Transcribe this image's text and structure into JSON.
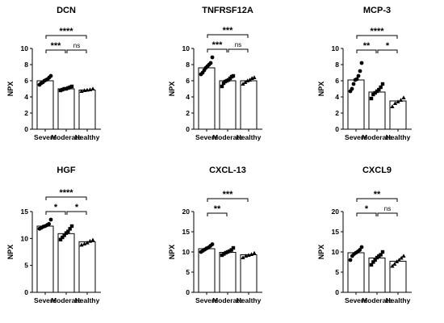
{
  "chart_data": [
    {
      "type": "bar",
      "title": "DCN",
      "ylabel": "NPX",
      "ylim": [
        0,
        10
      ],
      "yticks": [
        0,
        2,
        4,
        6,
        8,
        10
      ],
      "categories": [
        "Severe",
        "Moderate",
        "Healthy"
      ],
      "values": [
        6.0,
        5.0,
        4.85
      ],
      "points": [
        [
          5.5,
          5.7,
          5.8,
          6.0,
          6.1,
          6.2,
          6.4,
          6.6
        ],
        [
          4.8,
          4.9,
          5.0,
          5.0,
          5.1,
          5.2,
          5.3
        ],
        [
          4.7,
          4.8,
          4.85,
          4.9,
          5.0
        ]
      ],
      "comparisons": [
        {
          "from": 0,
          "to": 1,
          "label": "***"
        },
        {
          "from": 1,
          "to": 2,
          "label": "ns"
        },
        {
          "from": 0,
          "to": 2,
          "label": "****"
        }
      ]
    },
    {
      "type": "bar",
      "title": "TNFRSF12A",
      "ylabel": "NPX",
      "ylim": [
        0,
        10
      ],
      "yticks": [
        0,
        2,
        4,
        6,
        8,
        10
      ],
      "categories": [
        "Severe",
        "Moderate",
        "Healthy"
      ],
      "values": [
        7.6,
        6.0,
        6.0
      ],
      "points": [
        [
          6.8,
          7.0,
          7.3,
          7.6,
          7.8,
          8.0,
          8.2,
          8.9
        ],
        [
          5.3,
          5.7,
          5.9,
          6.0,
          6.1,
          6.3,
          6.5,
          6.6
        ],
        [
          5.6,
          5.8,
          6.0,
          6.1,
          6.3,
          6.4
        ]
      ],
      "comparisons": [
        {
          "from": 0,
          "to": 1,
          "label": "***"
        },
        {
          "from": 1,
          "to": 2,
          "label": "ns"
        },
        {
          "from": 0,
          "to": 2,
          "label": "***"
        }
      ]
    },
    {
      "type": "bar",
      "title": "MCP-3",
      "ylabel": "NPX",
      "ylim": [
        0,
        10
      ],
      "yticks": [
        0,
        2,
        4,
        6,
        8,
        10
      ],
      "categories": [
        "Severe",
        "Moderate",
        "Healthy"
      ],
      "values": [
        6.1,
        4.6,
        3.5
      ],
      "points": [
        [
          4.7,
          5.0,
          5.6,
          6.1,
          6.2,
          6.6,
          7.2,
          8.2
        ],
        [
          3.8,
          4.3,
          4.5,
          4.7,
          4.9,
          5.2,
          5.6
        ],
        [
          2.8,
          3.2,
          3.4,
          3.6,
          3.9
        ]
      ],
      "comparisons": [
        {
          "from": 0,
          "to": 1,
          "label": "**"
        },
        {
          "from": 1,
          "to": 2,
          "label": "*"
        },
        {
          "from": 0,
          "to": 2,
          "label": "****"
        }
      ]
    },
    {
      "type": "bar",
      "title": "HGF",
      "ylabel": "NPX",
      "ylim": [
        0,
        15
      ],
      "yticks": [
        0,
        5,
        10,
        15
      ],
      "categories": [
        "Severe",
        "Moderate",
        "Healthy"
      ],
      "values": [
        12.3,
        10.9,
        9.4
      ],
      "points": [
        [
          11.8,
          12.0,
          12.2,
          12.3,
          12.5,
          12.7,
          13.5
        ],
        [
          9.8,
          10.2,
          10.6,
          11.0,
          11.3,
          11.8,
          12.3
        ],
        [
          8.8,
          9.0,
          9.2,
          9.5,
          9.7
        ]
      ],
      "comparisons": [
        {
          "from": 0,
          "to": 1,
          "label": "*"
        },
        {
          "from": 1,
          "to": 2,
          "label": "*"
        },
        {
          "from": 0,
          "to": 2,
          "label": "****"
        }
      ]
    },
    {
      "type": "bar",
      "title": "CXCL-13",
      "ylabel": "NPX",
      "ylim": [
        0,
        20
      ],
      "yticks": [
        0,
        5,
        10,
        15,
        20
      ],
      "categories": [
        "Severe",
        "Moderate",
        "Healthy"
      ],
      "values": [
        10.8,
        9.9,
        9.3
      ],
      "points": [
        [
          10.0,
          10.3,
          10.6,
          10.9,
          11.1,
          11.5,
          11.9
        ],
        [
          9.2,
          9.5,
          9.8,
          10.0,
          10.2,
          10.5,
          11.0
        ],
        [
          8.6,
          9.0,
          9.2,
          9.4,
          9.7
        ]
      ],
      "comparisons": [
        {
          "from": 0,
          "to": 1,
          "label": "**"
        },
        {
          "from": 0,
          "to": 2,
          "label": "***"
        }
      ]
    },
    {
      "type": "bar",
      "title": "CXCL9",
      "ylabel": "NPX",
      "ylim": [
        0,
        20
      ],
      "yticks": [
        0,
        5,
        10,
        15,
        20
      ],
      "categories": [
        "Severe",
        "Moderate",
        "Healthy"
      ],
      "values": [
        9.8,
        8.5,
        7.7
      ],
      "points": [
        [
          8.0,
          9.0,
          9.5,
          9.8,
          10.1,
          10.5,
          11.2
        ],
        [
          6.8,
          7.5,
          8.0,
          8.6,
          9.0,
          9.3,
          10.0
        ],
        [
          6.5,
          7.0,
          7.6,
          8.0,
          8.5,
          9.0
        ]
      ],
      "comparisons": [
        {
          "from": 0,
          "to": 1,
          "label": "*"
        },
        {
          "from": 1,
          "to": 2,
          "label": "ns"
        },
        {
          "from": 0,
          "to": 2,
          "label": "**"
        }
      ]
    }
  ]
}
